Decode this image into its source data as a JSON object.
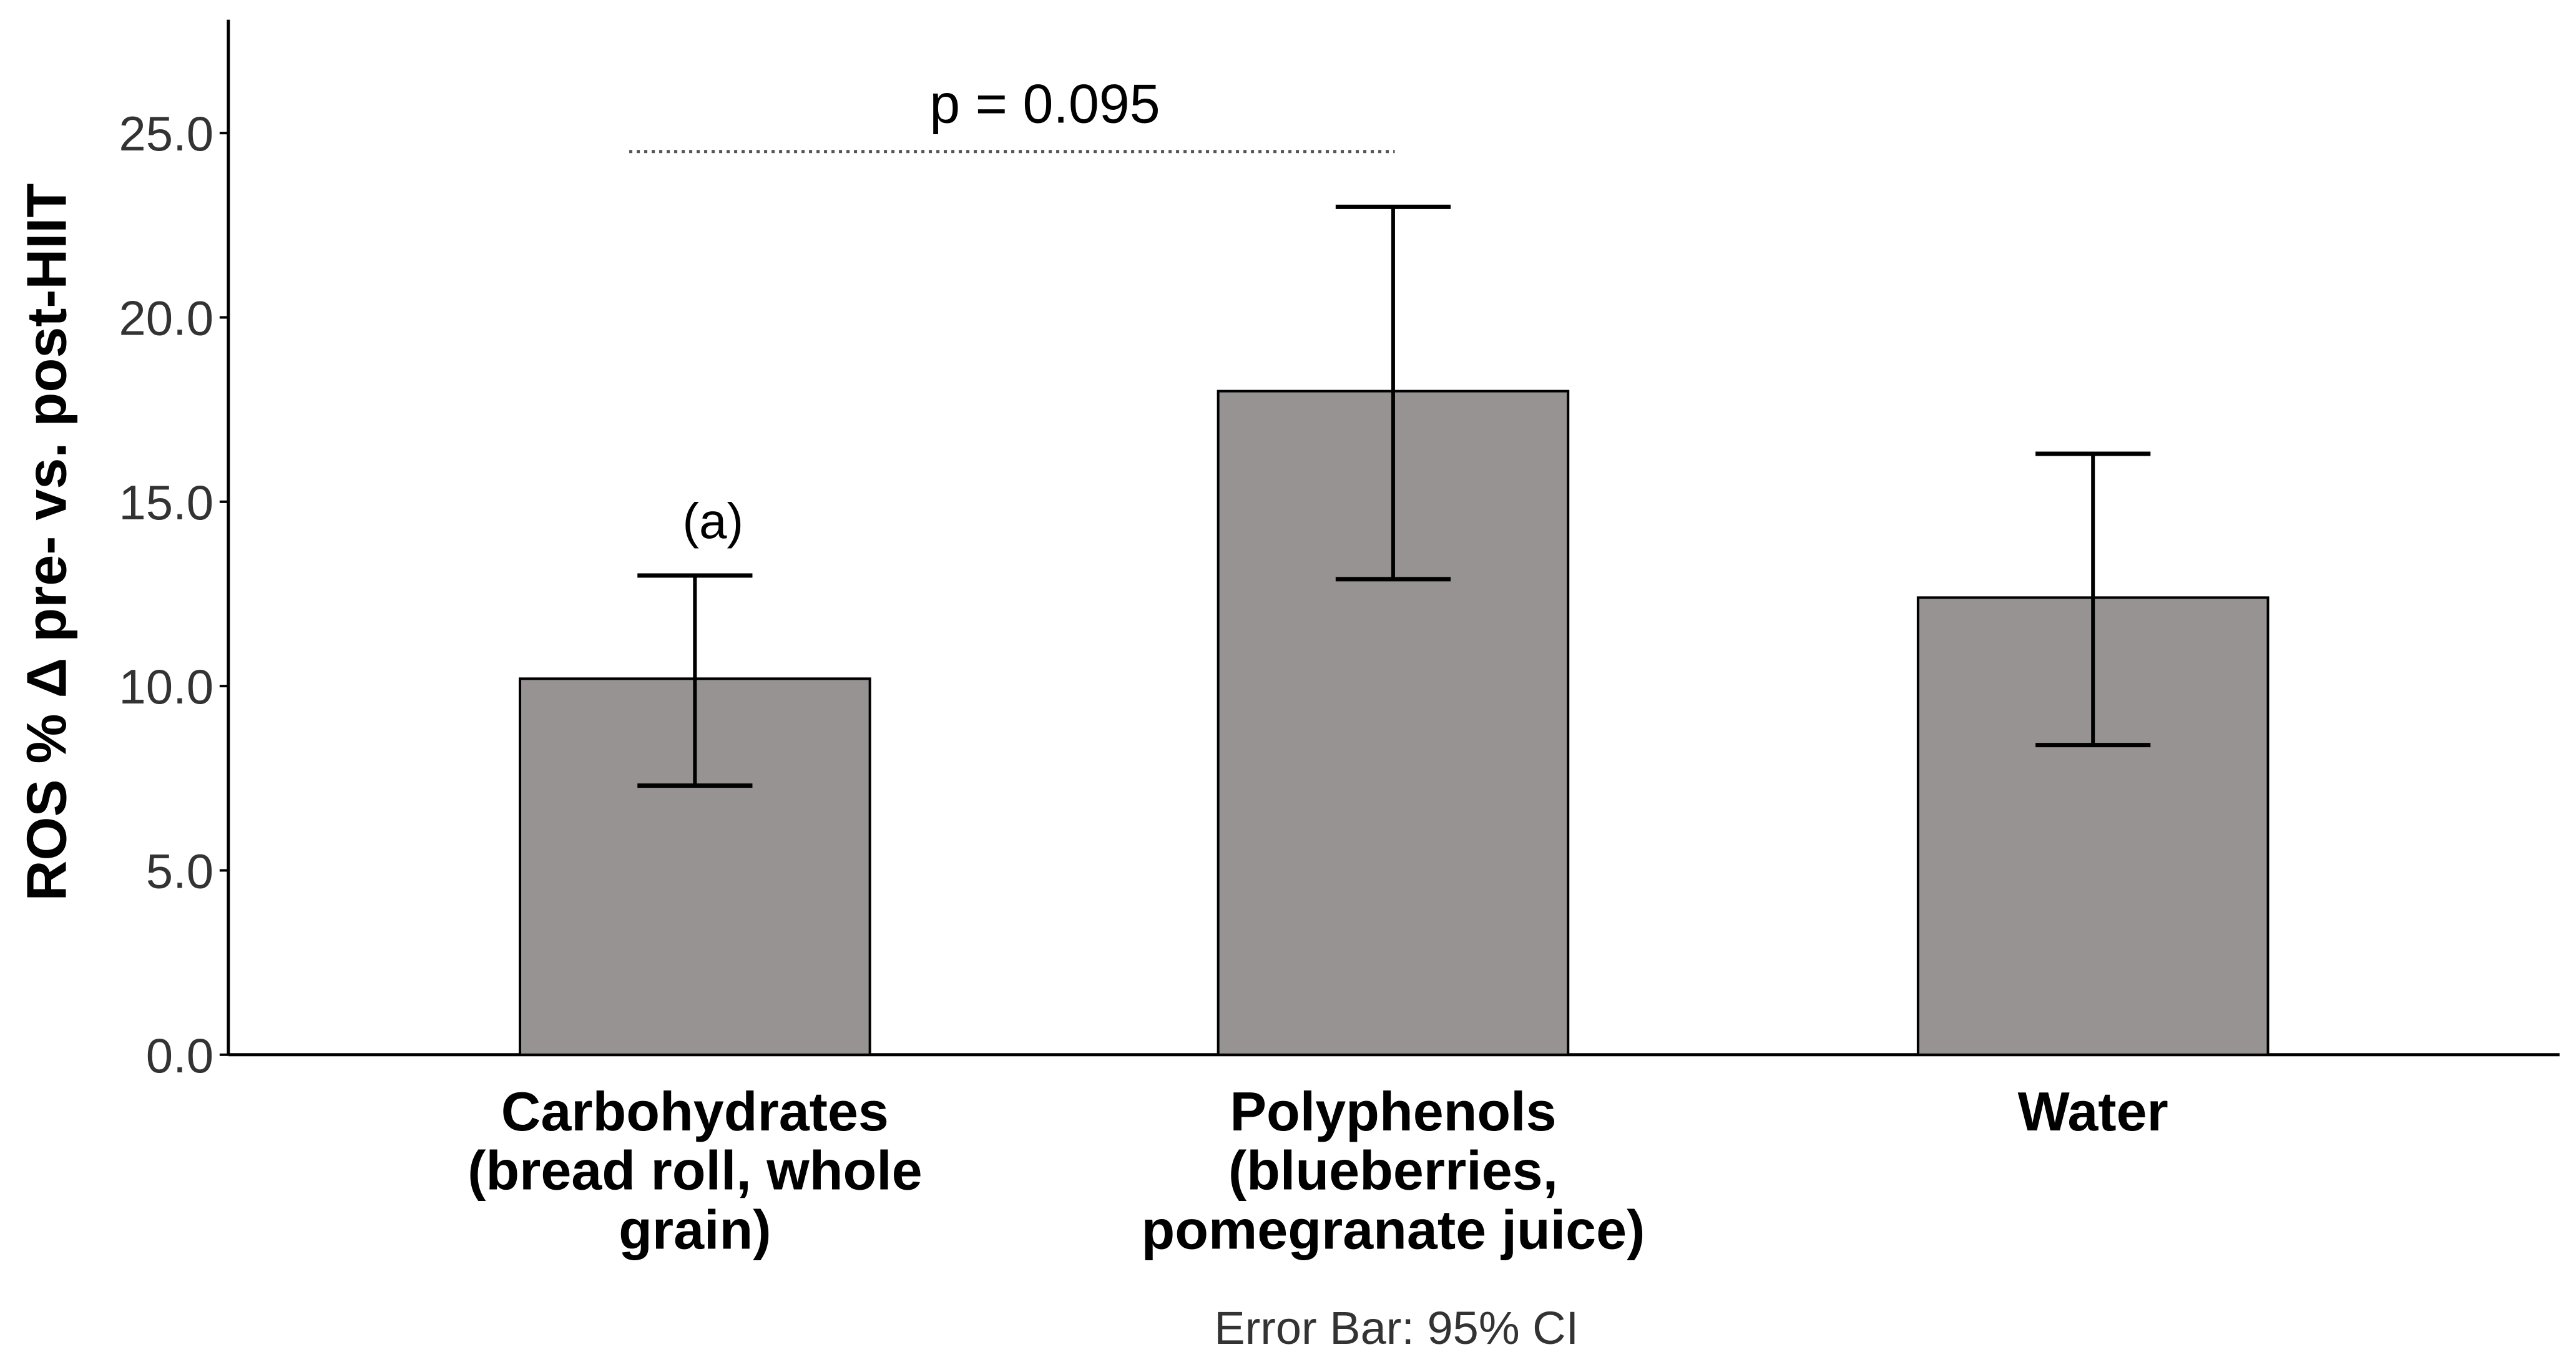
{
  "chart_data": {
    "type": "bar",
    "title": "",
    "xlabel": "",
    "ylabel": "ROS % Δ pre- vs. post-HIIT",
    "ylim": [
      0,
      28
    ],
    "yticks": [
      "0.0",
      "5.0",
      "10.0",
      "15.0",
      "20.0",
      "25.0"
    ],
    "ytick_values": [
      0,
      5,
      10,
      15,
      20,
      25
    ],
    "grid": false,
    "categories": [
      [
        "Carbohydrates",
        "(bread roll, whole",
        "grain)"
      ],
      [
        "Polyphenols",
        "(blueberries,",
        "pomegranate juice)"
      ],
      [
        "Water"
      ]
    ],
    "values": [
      10.2,
      18.0,
      12.4
    ],
    "error_low": [
      7.3,
      12.9,
      8.4
    ],
    "error_high": [
      13.0,
      23.0,
      16.3
    ],
    "bar_color": "#989393",
    "annotations": {
      "bar_label": "(a)",
      "bracket_label": "p = 0.095",
      "bracket_from": 0,
      "bracket_to": 1,
      "bracket_y": 24.5
    },
    "footer": "Error Bar: 95% CI"
  }
}
